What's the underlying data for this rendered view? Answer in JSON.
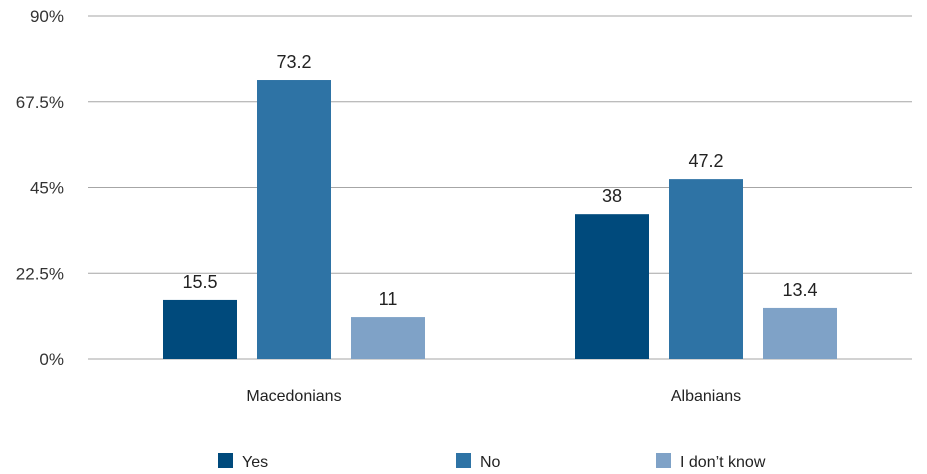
{
  "chart_data": {
    "type": "bar",
    "categories": [
      "Macedonians",
      "Albanians"
    ],
    "series": [
      {
        "name": "Yes",
        "color": "#004a7c",
        "values": [
          15.5,
          38
        ]
      },
      {
        "name": "No",
        "color": "#2e73a5",
        "values": [
          73.2,
          47.2
        ]
      },
      {
        "name": "I don’t know",
        "color": "#7fa2c7",
        "values": [
          11,
          13.4
        ]
      }
    ],
    "data_labels": [
      [
        "15.5",
        "38"
      ],
      [
        "73.2",
        "47.2"
      ],
      [
        "11",
        "13.4"
      ]
    ],
    "y_ticks": [
      0,
      22.5,
      45,
      67.5,
      90
    ],
    "y_tick_labels": [
      "0%",
      "22.5%",
      "45%",
      "67.5%",
      "90%"
    ],
    "ylim": [
      0,
      90
    ],
    "title": "",
    "xlabel": "",
    "ylabel": "",
    "grid": true,
    "legend_position": "bottom"
  }
}
